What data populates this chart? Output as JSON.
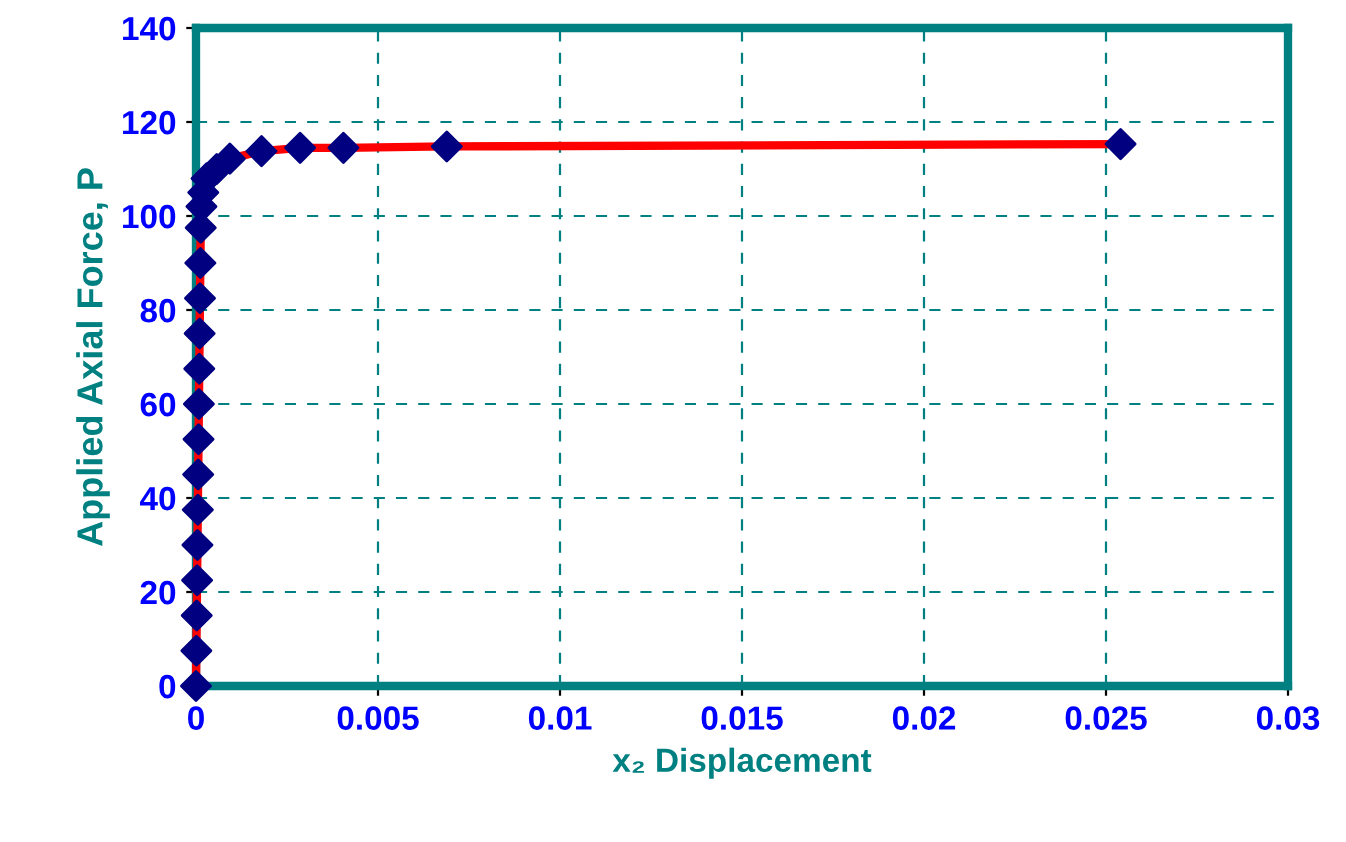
{
  "chart_data": {
    "type": "line",
    "xlabel": "x₂ Displacement",
    "ylabel": "Applied Axial Force, P",
    "x": [
      0,
      1e-05,
      2e-05,
      3e-05,
      4e-05,
      5e-05,
      6e-05,
      7e-05,
      8e-05,
      9e-05,
      0.0001,
      0.00011,
      0.00012,
      0.00013,
      0.00015,
      0.0002,
      0.00029,
      0.00057,
      0.00093,
      0.0018,
      0.00286,
      0.00405,
      0.00689,
      0.0254
    ],
    "series": [
      {
        "color": "#ff0000",
        "colors": [
          "#000080",
          "#000080",
          "#000080",
          "#000080",
          "#000080",
          "#000080",
          "#000080",
          "#000080",
          "#000080",
          "#000080",
          "#000080",
          "#000080",
          "#000080",
          "#000080",
          "#000080",
          "#000080",
          "#000080",
          "#000080",
          "#000080",
          "#000080",
          "#000080",
          "#000080",
          "#000080",
          "#000080"
        ],
        "values": [
          0,
          7.5,
          15,
          22.5,
          30,
          37.5,
          45,
          52.5,
          60,
          67.5,
          75,
          82.5,
          90,
          97.5,
          102,
          105,
          108,
          110,
          112.2,
          113.8,
          114.5,
          114.5,
          114.8,
          115.3
        ]
      }
    ],
    "xlim": [
      0,
      0.03
    ],
    "ylim": [
      0,
      140
    ],
    "xticks": [
      0,
      0.005,
      0.01,
      0.015,
      0.02,
      0.025,
      0.03
    ],
    "yticks": [
      0,
      20,
      40,
      60,
      80,
      100,
      120,
      140
    ],
    "grid": true,
    "marker": "diamond",
    "line_style": "solid",
    "legend": false
  }
}
